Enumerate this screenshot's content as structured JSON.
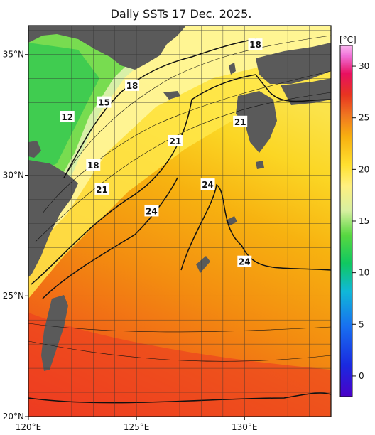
{
  "map": {
    "title": "Daily SSTs 17 Dec. 2025.",
    "lat_ticks": [
      {
        "value": 35,
        "label": "35°N"
      },
      {
        "value": 30,
        "label": "30°N"
      },
      {
        "value": 25,
        "label": "25°N"
      },
      {
        "value": 20,
        "label": "20°N"
      }
    ],
    "lon_ticks": [
      {
        "value": 120,
        "label": "120°E"
      },
      {
        "value": 125,
        "label": "125°E"
      },
      {
        "value": 130,
        "label": "130°E"
      }
    ],
    "extent": {
      "lon_min": 120,
      "lon_max": 134,
      "lat_min": 20,
      "lat_max": 36.2
    },
    "contour_labels": [
      {
        "text": "18",
        "lon": 130.5,
        "lat": 35.4
      },
      {
        "text": "18",
        "lon": 124.8,
        "lat": 33.7
      },
      {
        "text": "15",
        "lon": 123.5,
        "lat": 33.0
      },
      {
        "text": "12",
        "lon": 121.8,
        "lat": 32.4
      },
      {
        "text": "21",
        "lon": 129.8,
        "lat": 32.2
      },
      {
        "text": "21",
        "lon": 126.8,
        "lat": 31.4
      },
      {
        "text": "18",
        "lon": 123.0,
        "lat": 30.4
      },
      {
        "text": "24",
        "lon": 128.3,
        "lat": 29.6
      },
      {
        "text": "21",
        "lon": 123.4,
        "lat": 29.4
      },
      {
        "text": "24",
        "lon": 125.7,
        "lat": 28.5
      },
      {
        "text": "24",
        "lon": 130.0,
        "lat": 26.4
      }
    ]
  },
  "colorbar": {
    "unit": "[°C]",
    "ticks": [
      0,
      5,
      10,
      15,
      20,
      25,
      30
    ],
    "min": -2,
    "max": 32
  },
  "colors": {
    "land": "#5a5a5a",
    "ocean_warm": "#f05a1e",
    "ocean_mid": "#f7b010",
    "ocean_cool": "#ffee44",
    "shelf": "#4ed14e"
  }
}
